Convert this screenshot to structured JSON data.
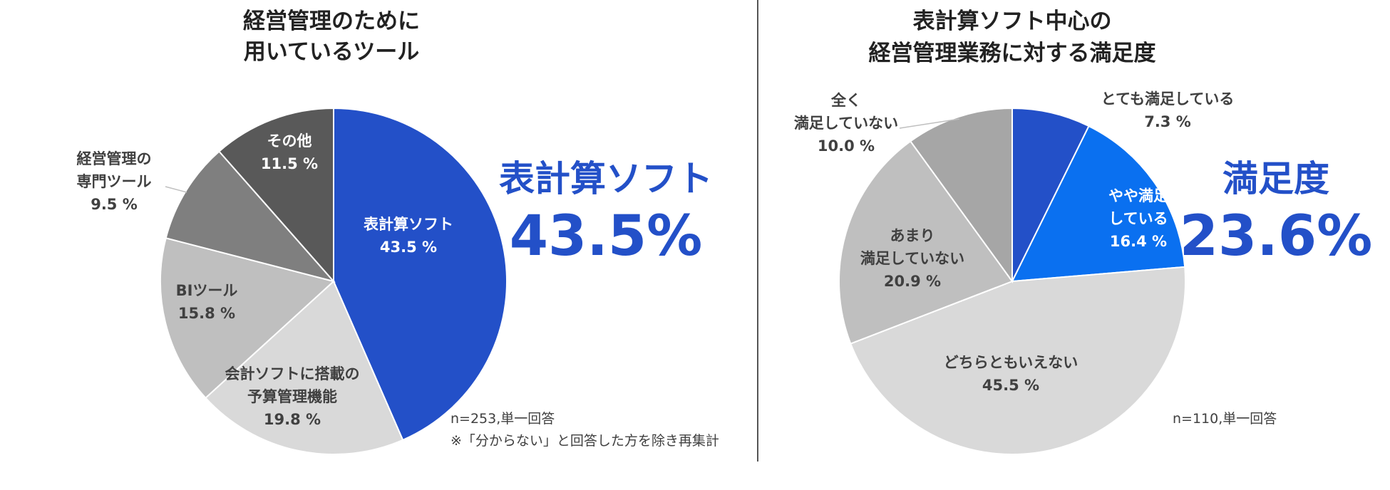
{
  "colors": {
    "blue_dark": "#2350c8",
    "blue_bright": "#0a70f0",
    "gray_darkest": "#595959",
    "gray_dark": "#7f7f7f",
    "gray_mid": "#a6a6a6",
    "gray_light": "#bfbfbf",
    "gray_lightest": "#d9d9d9",
    "highlight": "#2350c8"
  },
  "chart_data": [
    {
      "type": "pie",
      "title": [
        "経営管理のために",
        "用いているツール"
      ],
      "note": "n=253,単一回答",
      "note2": "※「分からない」と回答した方を除き再集計",
      "highlight_label": "表計算ソフト",
      "highlight_value": "43.5%",
      "slices": [
        {
          "label": [
            "表計算ソフト"
          ],
          "value": 43.5,
          "value_text": "43.5 %",
          "color": "#2350c8"
        },
        {
          "label": [
            "会計ソフトに搭載の",
            "予算管理機能"
          ],
          "value": 19.8,
          "value_text": "19.8 %",
          "color": "#d9d9d9"
        },
        {
          "label": [
            "BIツール"
          ],
          "value": 15.8,
          "value_text": "15.8 %",
          "color": "#bfbfbf"
        },
        {
          "label": [
            "経営管理の",
            "専門ツール"
          ],
          "value": 9.5,
          "value_text": "9.5 %",
          "color": "#7f7f7f"
        },
        {
          "label": [
            "その他"
          ],
          "value": 11.5,
          "value_text": "11.5 %",
          "color": "#595959"
        }
      ]
    },
    {
      "type": "pie",
      "title": [
        "表計算ソフト中心の",
        "経営管理業務に対する満足度"
      ],
      "note": "n=110,単一回答",
      "highlight_label": "満足度",
      "highlight_value": "23.6%",
      "slices": [
        {
          "label": [
            "とても満足している"
          ],
          "value": 7.3,
          "value_text": "7.3 %",
          "color": "#2350c8"
        },
        {
          "label": [
            "やや満足",
            "している"
          ],
          "value": 16.4,
          "value_text": "16.4 %",
          "color": "#0a70f0"
        },
        {
          "label": [
            "どちらともいえない"
          ],
          "value": 45.5,
          "value_text": "45.5 %",
          "color": "#d9d9d9"
        },
        {
          "label": [
            "あまり",
            "満足していない"
          ],
          "value": 20.9,
          "value_text": "20.9 %",
          "color": "#bfbfbf"
        },
        {
          "label": [
            "全く",
            "満足していない"
          ],
          "value": 10.0,
          "value_text": "10.0 %",
          "color": "#a6a6a6"
        }
      ]
    }
  ]
}
